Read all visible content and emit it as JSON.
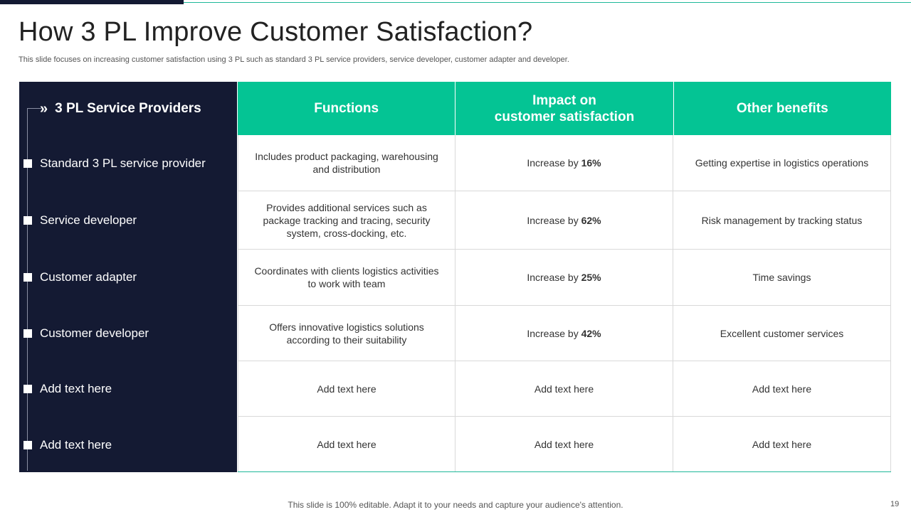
{
  "title": "How 3 PL Improve Customer Satisfaction?",
  "subtitle": "This slide focuses on increasing customer satisfaction using 3 PL such as standard 3 PL service providers, service developer, customer adapter and developer.",
  "left_panel": {
    "header": "3 PL Service Providers",
    "items": [
      "Standard 3 PL service provider",
      "Service developer",
      "Customer adapter",
      "Customer developer",
      "Add text here",
      "Add text here"
    ]
  },
  "table": {
    "headers": [
      "Functions",
      "Impact on\ncustomer satisfaction",
      "Other benefits"
    ],
    "rows": [
      {
        "function": "Includes product packaging, warehousing and distribution",
        "impact_prefix": "Increase by ",
        "impact_value": "16%",
        "benefit": "Getting expertise in logistics operations"
      },
      {
        "function": "Provides additional services such as package tracking and tracing, security system, cross-docking, etc.",
        "impact_prefix": "Increase by ",
        "impact_value": "62%",
        "benefit": "Risk management by tracking status"
      },
      {
        "function": "Coordinates with clients logistics activities to work with team",
        "impact_prefix": "Increase by ",
        "impact_value": "25%",
        "benefit": "Time savings"
      },
      {
        "function": "Offers innovative logistics solutions according to their suitability",
        "impact_prefix": "Increase by ",
        "impact_value": "42%",
        "benefit": "Excellent customer services"
      },
      {
        "function": "Add text here",
        "impact_prefix": "Add text here",
        "impact_value": "",
        "benefit": "Add text here"
      },
      {
        "function": "Add text here",
        "impact_prefix": "Add text here",
        "impact_value": "",
        "benefit": "Add text here"
      }
    ]
  },
  "footer": "This slide is 100% editable. Adapt it to your needs and capture your audience's attention.",
  "page_number": "19",
  "colors": {
    "accent": "#04c494",
    "dark": "#141a33"
  },
  "icons": {
    "header_icon": "double-chevron-right-icon",
    "bullet_icon": "square-bullet-icon"
  }
}
